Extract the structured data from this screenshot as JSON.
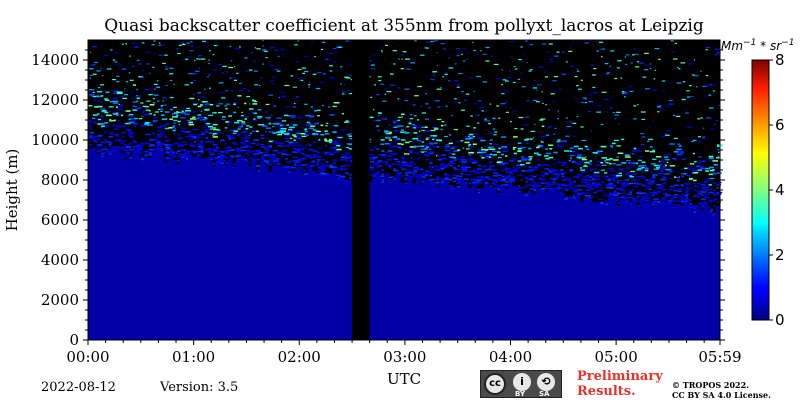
{
  "chart_data": {
    "type": "heatmap",
    "title": "Quasi backscatter coefficient at 355nm from pollyxt_lacros at Leipzig",
    "xlabel": "UTC",
    "ylabel": "Height (m)",
    "x_ticks": [
      "00:00",
      "01:00",
      "02:00",
      "03:00",
      "04:00",
      "05:00",
      "05:59"
    ],
    "x_tick_hours": [
      0,
      1,
      2,
      3,
      4,
      5,
      5.9833
    ],
    "xlim_hours": [
      0,
      5.9833
    ],
    "y_ticks": [
      0,
      2000,
      4000,
      6000,
      8000,
      10000,
      12000,
      14000
    ],
    "ylim": [
      0,
      15000
    ],
    "colorbar": {
      "label": "Mm⁻¹ * sr⁻¹",
      "label_parts": {
        "base": "Mm",
        "exp1": "−1",
        "mid": " * sr",
        "exp2": "−1"
      },
      "range": [
        0,
        8
      ],
      "ticks": [
        0,
        2,
        4,
        6,
        8
      ],
      "colormap": "jet"
    },
    "no_data_gap_hours": [
      2.5,
      2.6667
    ],
    "no_data_color": "#000000",
    "observations": {
      "lower_layer_value": 0.3,
      "signal_top_m_at_start": 9500,
      "signal_top_m_at_end": 6500,
      "upper_noise_values": [
        0,
        4
      ]
    }
  },
  "footer": {
    "date": "2022-08-12",
    "version": "Version: 3.5",
    "license_badge": {
      "icon": "cc-by-sa-icon",
      "left": "BY",
      "right": "SA"
    },
    "preliminary_line1": "Preliminary",
    "preliminary_line2": "Results.",
    "copyright_line1": "© TROPOS 2022.",
    "copyright_line2": "CC BY SA 4.0 License."
  },
  "colors": {
    "prelim": "#e8322c",
    "background": "#ffffff"
  }
}
